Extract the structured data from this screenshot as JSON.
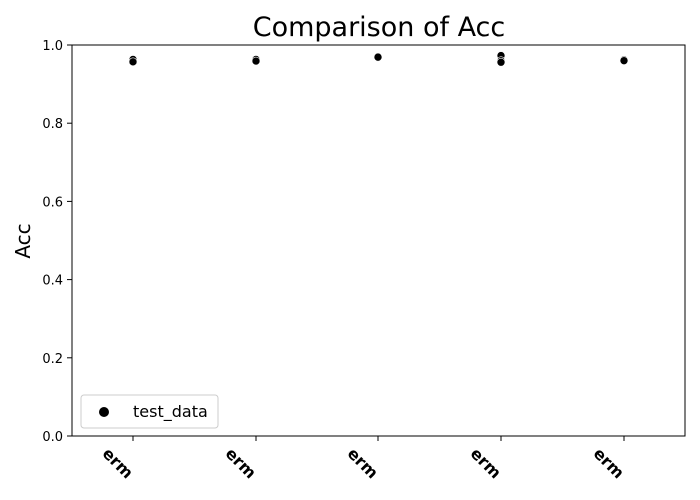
{
  "chart_data": {
    "type": "scatter",
    "title": "Comparison of Acc",
    "xlabel": "",
    "ylabel": "Acc",
    "ylim": [
      0.0,
      1.0
    ],
    "yticks": [
      "0.0",
      "0.2",
      "0.4",
      "0.6",
      "0.8",
      "1.0"
    ],
    "categories": [
      "erm",
      "erm",
      "erm",
      "erm",
      "erm"
    ],
    "grid": false,
    "legend_position": "lower-left",
    "series": [
      {
        "name": "test_data",
        "color": "#000000",
        "points": [
          {
            "category_index": 0,
            "y": 0.963
          },
          {
            "category_index": 0,
            "y": 0.957
          },
          {
            "category_index": 1,
            "y": 0.963
          },
          {
            "category_index": 1,
            "y": 0.959
          },
          {
            "category_index": 2,
            "y": 0.969
          },
          {
            "category_index": 3,
            "y": 0.973
          },
          {
            "category_index": 3,
            "y": 0.96
          },
          {
            "category_index": 3,
            "y": 0.956
          },
          {
            "category_index": 4,
            "y": 0.962
          },
          {
            "category_index": 4,
            "y": 0.96
          }
        ]
      }
    ]
  }
}
